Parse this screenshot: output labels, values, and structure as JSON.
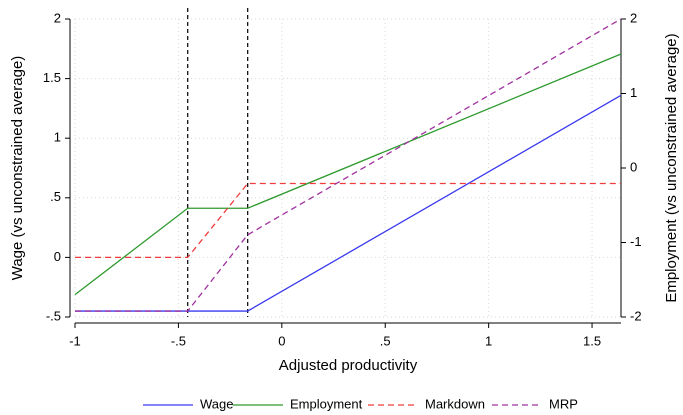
{
  "chart_data": {
    "type": "line",
    "x_label": "Adjusted productivity",
    "y_label": "Wage (vs unconstrained average)",
    "y2_label": "Employment (vs unconstrained average)",
    "xlim": [
      -1,
      1.64
    ],
    "xticks": [
      -1,
      {
        "value": -0.5,
        "label": "-.5"
      },
      0,
      {
        "value": 0.5,
        "label": ".5"
      },
      1,
      1.5
    ],
    "ylim": [
      -0.5,
      2
    ],
    "yticks": [
      {
        "value": -0.5,
        "label": "-.5"
      },
      0,
      {
        "value": 0.5,
        "label": ".5"
      },
      1,
      1.5,
      2
    ],
    "y2lim": [
      -2,
      2
    ],
    "y2ticks": [
      -2,
      -1,
      0,
      1,
      2
    ],
    "grid": true,
    "vlines": [
      -0.455,
      -0.165
    ],
    "legend": "bottom",
    "series": [
      {
        "name": "Wage",
        "color": "#3a3af0",
        "linestyle": "solid",
        "x": [
          -1,
          -0.165,
          1.64
        ],
        "values": [
          -0.45,
          -0.45,
          1.36
        ]
      },
      {
        "name": "Employment",
        "color": "#2e9a2e",
        "linestyle": "solid",
        "axis": "y2",
        "x": [
          -1,
          -0.455,
          -0.165,
          1.64
        ],
        "values": [
          -1.7,
          -0.54,
          -0.54,
          1.53
        ]
      },
      {
        "name": "Markdown",
        "color": "#f03c3c",
        "linestyle": "dashed",
        "x": [
          -1,
          -0.455,
          -0.165,
          1.64
        ],
        "values": [
          0,
          0,
          0.62,
          0.62
        ]
      },
      {
        "name": "MRP",
        "color": "#a030a0",
        "linestyle": "dashed",
        "x": [
          -1,
          -0.455,
          -0.165,
          1.64
        ],
        "values": [
          -0.45,
          -0.45,
          0.19,
          2
        ]
      }
    ]
  }
}
